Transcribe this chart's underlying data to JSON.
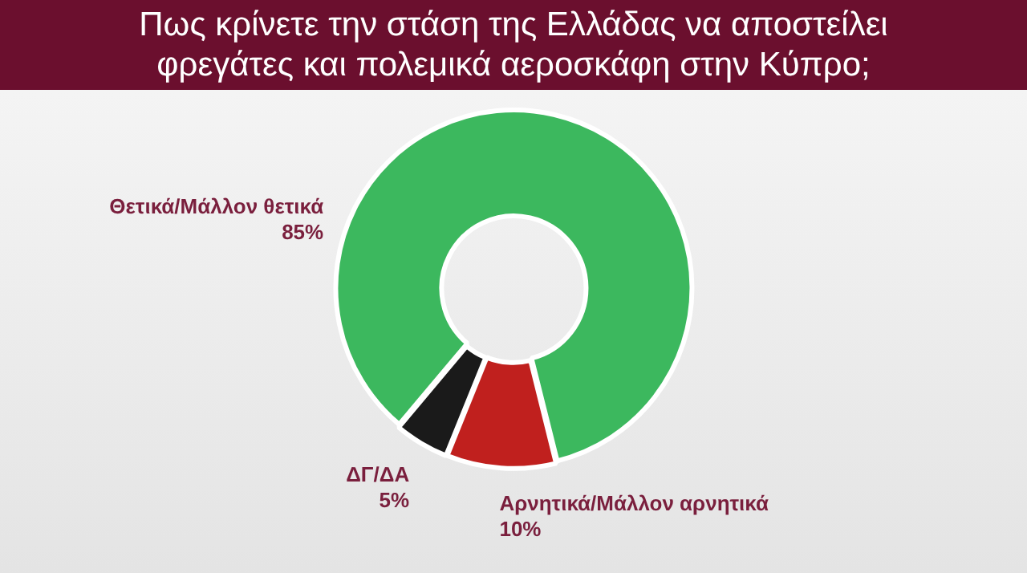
{
  "chart_data": {
    "type": "donut",
    "title": "Πως κρίνετε την στάση της Ελλάδας να αποστείλει φρεγάτες και πολεμικά αεροσκάφη στην Κύπρο;",
    "categories": [
      "Θετικά/Μάλλον θετικά",
      "Αρνητικά/Μάλλον αρνητικά",
      "ΔΓ/ΔΑ"
    ],
    "values": [
      85,
      10,
      5
    ],
    "value_labels": [
      "85%",
      "10%",
      "5%"
    ],
    "colors": [
      "#3cb85e",
      "#c0201e",
      "#1a1a1a"
    ],
    "legend": false
  }
}
